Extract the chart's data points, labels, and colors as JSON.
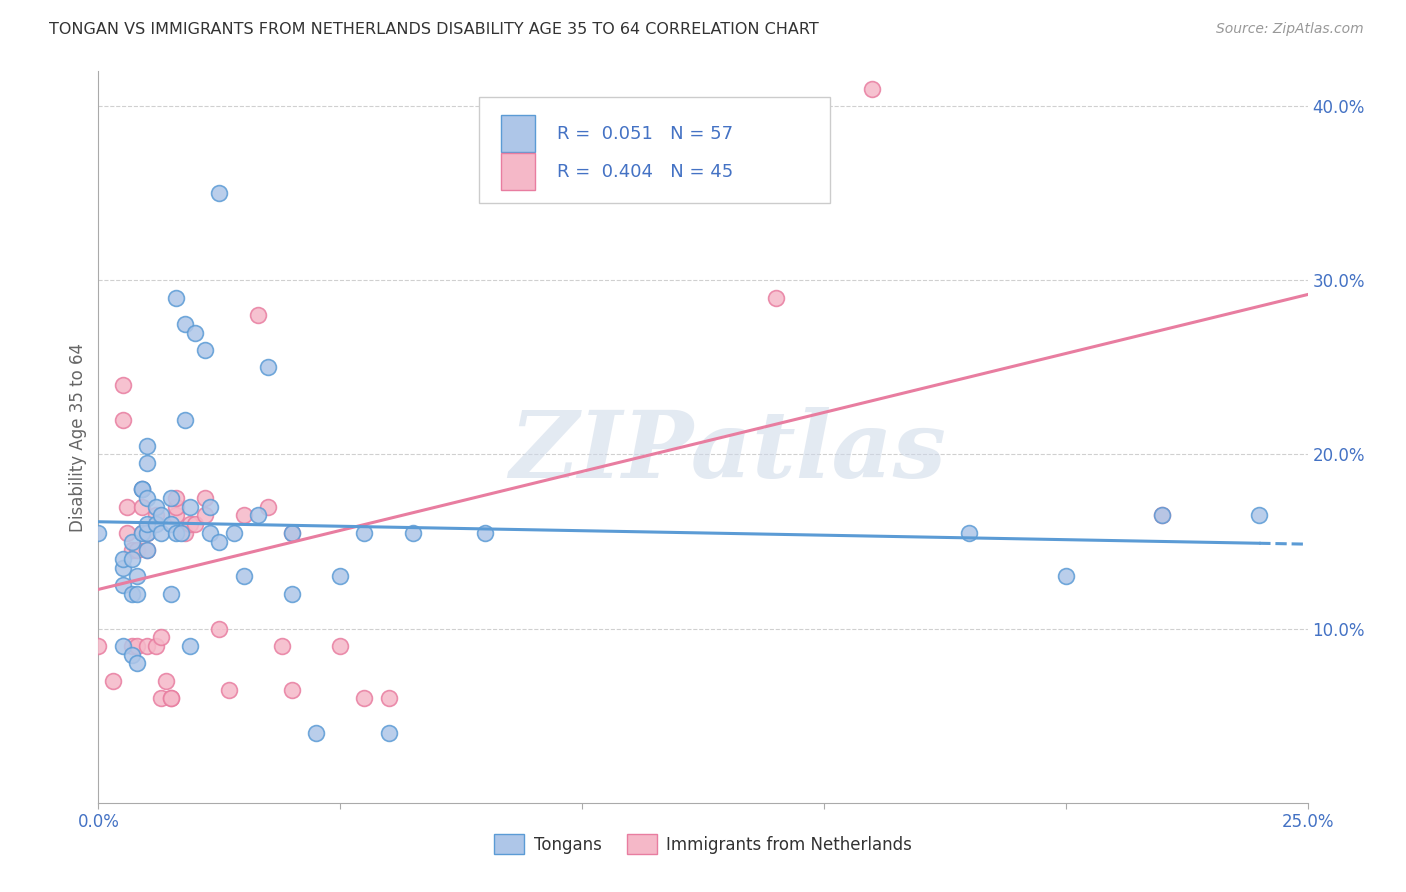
{
  "title": "TONGAN VS IMMIGRANTS FROM NETHERLANDS DISABILITY AGE 35 TO 64 CORRELATION CHART",
  "source": "Source: ZipAtlas.com",
  "ylabel": "Disability Age 35 to 64",
  "x_min": 0.0,
  "x_max": 0.25,
  "y_min": 0.0,
  "y_max": 0.42,
  "x_tick_positions": [
    0.0,
    0.05,
    0.1,
    0.15,
    0.2,
    0.25
  ],
  "x_tick_labels": [
    "0.0%",
    "",
    "",
    "",
    "",
    "25.0%"
  ],
  "y_ticks_right": [
    0.1,
    0.2,
    0.3,
    0.4
  ],
  "y_tick_labels_right": [
    "10.0%",
    "20.0%",
    "30.0%",
    "40.0%"
  ],
  "legend_labels": [
    "Tongans",
    "Immigrants from Netherlands"
  ],
  "r_tongan": 0.051,
  "n_tongan": 57,
  "r_netherlands": 0.404,
  "n_netherlands": 45,
  "color_tongan_fill": "#aec6e8",
  "color_tongan_edge": "#5b9bd5",
  "color_netherlands_fill": "#f5b8c8",
  "color_netherlands_edge": "#e87da0",
  "color_line_tongan": "#5b9bd5",
  "color_line_netherlands": "#e87da0",
  "color_text_blue": "#4472c4",
  "color_grid": "#d0d0d0",
  "watermark_text": "ZIPatlas",
  "watermark_color": "#cdd9e8",
  "tongan_x": [
    0.0,
    0.005,
    0.005,
    0.005,
    0.005,
    0.007,
    0.007,
    0.007,
    0.007,
    0.008,
    0.008,
    0.008,
    0.009,
    0.009,
    0.009,
    0.01,
    0.01,
    0.01,
    0.01,
    0.01,
    0.01,
    0.012,
    0.012,
    0.013,
    0.013,
    0.015,
    0.015,
    0.015,
    0.016,
    0.016,
    0.017,
    0.018,
    0.018,
    0.019,
    0.019,
    0.02,
    0.022,
    0.023,
    0.023,
    0.025,
    0.025,
    0.028,
    0.03,
    0.033,
    0.035,
    0.04,
    0.04,
    0.045,
    0.05,
    0.055,
    0.06,
    0.065,
    0.08,
    0.18,
    0.2,
    0.22,
    0.24
  ],
  "tongan_y": [
    0.155,
    0.125,
    0.135,
    0.14,
    0.09,
    0.14,
    0.15,
    0.12,
    0.085,
    0.12,
    0.13,
    0.08,
    0.155,
    0.18,
    0.18,
    0.145,
    0.155,
    0.16,
    0.175,
    0.195,
    0.205,
    0.17,
    0.16,
    0.155,
    0.165,
    0.175,
    0.16,
    0.12,
    0.29,
    0.155,
    0.155,
    0.22,
    0.275,
    0.17,
    0.09,
    0.27,
    0.26,
    0.17,
    0.155,
    0.15,
    0.35,
    0.155,
    0.13,
    0.165,
    0.25,
    0.155,
    0.12,
    0.04,
    0.13,
    0.155,
    0.04,
    0.155,
    0.155,
    0.155,
    0.13,
    0.165,
    0.165
  ],
  "netherlands_x": [
    0.0,
    0.003,
    0.005,
    0.005,
    0.006,
    0.006,
    0.007,
    0.007,
    0.008,
    0.008,
    0.009,
    0.009,
    0.009,
    0.01,
    0.01,
    0.01,
    0.012,
    0.012,
    0.013,
    0.013,
    0.014,
    0.015,
    0.015,
    0.016,
    0.016,
    0.016,
    0.018,
    0.019,
    0.02,
    0.022,
    0.022,
    0.025,
    0.027,
    0.03,
    0.033,
    0.035,
    0.038,
    0.04,
    0.04,
    0.05,
    0.055,
    0.06,
    0.14,
    0.16,
    0.22
  ],
  "netherlands_y": [
    0.09,
    0.07,
    0.22,
    0.24,
    0.17,
    0.155,
    0.145,
    0.09,
    0.145,
    0.09,
    0.155,
    0.17,
    0.18,
    0.155,
    0.145,
    0.09,
    0.165,
    0.09,
    0.095,
    0.06,
    0.07,
    0.06,
    0.06,
    0.165,
    0.17,
    0.175,
    0.155,
    0.16,
    0.16,
    0.165,
    0.175,
    0.1,
    0.065,
    0.165,
    0.28,
    0.17,
    0.09,
    0.155,
    0.065,
    0.09,
    0.06,
    0.06,
    0.29,
    0.41,
    0.165
  ]
}
